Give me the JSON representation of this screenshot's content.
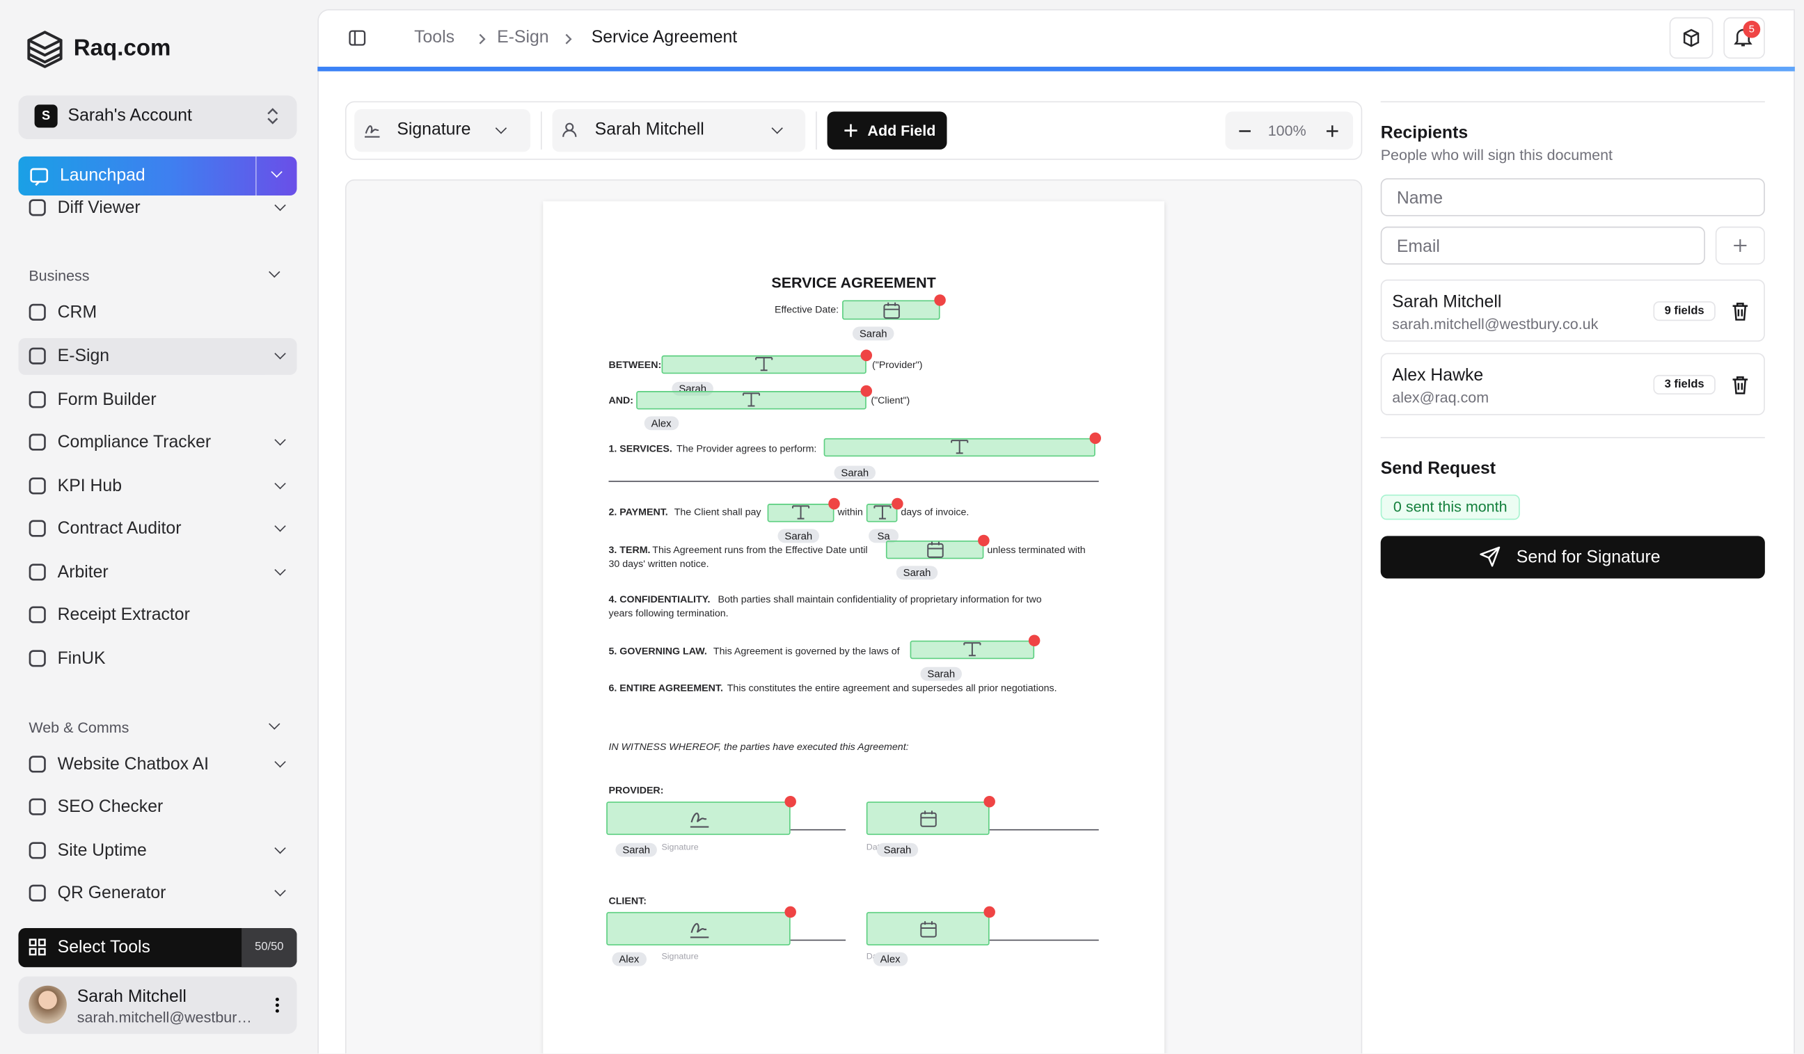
{
  "sidebar": {
    "brand": "Raq.com",
    "account": {
      "initial": "S",
      "name": "Sarah's Account"
    },
    "launchpad": "Launchpad",
    "items": [
      {
        "label": "Diff Viewer",
        "expandable": true
      },
      {
        "label": "Business",
        "group": true
      },
      {
        "label": "CRM"
      },
      {
        "label": "E-Sign",
        "expandable": true,
        "active": true
      },
      {
        "label": "Form Builder"
      },
      {
        "label": "Compliance Tracker",
        "expandable": true
      },
      {
        "label": "KPI Hub",
        "expandable": true
      },
      {
        "label": "Contract Auditor",
        "expandable": true
      },
      {
        "label": "Arbiter",
        "expandable": true
      },
      {
        "label": "Receipt Extractor"
      },
      {
        "label": "FinUK"
      },
      {
        "label": "Web & Comms",
        "group": true
      },
      {
        "label": "Website Chatbox AI",
        "expandable": true
      },
      {
        "label": "SEO Checker"
      },
      {
        "label": "Site Uptime",
        "expandable": true
      },
      {
        "label": "QR Generator",
        "expandable": true
      }
    ],
    "select_tools": {
      "label": "Select Tools",
      "count": "50/50"
    },
    "user": {
      "name": "Sarah Mitchell",
      "email": "sarah.mitchell@westbury.co.uk"
    }
  },
  "header": {
    "breadcrumb": [
      "Tools",
      "E-Sign",
      "Service Agreement"
    ],
    "notifications": "5"
  },
  "toolbar": {
    "field_type": "Signature",
    "recipient": "Sarah Mitchell",
    "add_field": "Add Field",
    "zoom": "100%"
  },
  "document": {
    "title": "SERVICE AGREEMENT",
    "fragments": [
      "Effective Date:",
      "BETWEEN:",
      "(\"Provider\")",
      "AND:",
      "(\"Client\")",
      "1. SERVICES.",
      "The Provider agrees to perform:",
      "2. PAYMENT.",
      "The Client shall pay",
      "within",
      "days of invoice.",
      "3. TERM.",
      "This Agreement runs from the Effective Date until",
      "unless terminated with",
      "30 days' written notice.",
      "4. CONFIDENTIALITY.",
      "Both parties shall maintain confidentiality of proprietary information for two",
      "years following termination.",
      "5. GOVERNING LAW.",
      "This Agreement is governed by the laws of",
      "6. ENTIRE AGREEMENT.",
      "This constitutes the entire agreement and supersedes all prior negotiations.",
      "IN WITNESS WHEREOF, the parties have executed this Agreement:",
      "PROVIDER:",
      "CLIENT:",
      "Signature",
      "Date",
      "Signature",
      "Date"
    ],
    "fields": [
      {
        "kind": "date",
        "tag": "Sarah"
      },
      {
        "kind": "text",
        "tag": "Sarah"
      },
      {
        "kind": "text",
        "tag": "Alex"
      },
      {
        "kind": "text",
        "tag": "Sarah"
      },
      {
        "kind": "text",
        "tag": "Sarah"
      },
      {
        "kind": "text",
        "tag": "Sa"
      },
      {
        "kind": "date",
        "tag": "Sarah"
      },
      {
        "kind": "text",
        "tag": "Sarah"
      },
      {
        "kind": "signature",
        "tag": "Sarah"
      },
      {
        "kind": "date",
        "tag": "Sarah"
      },
      {
        "kind": "signature",
        "tag": "Alex"
      },
      {
        "kind": "date",
        "tag": "Alex"
      }
    ]
  },
  "recipients": {
    "title": "Recipients",
    "subtitle": "People who will sign this document",
    "name_placeholder": "Name",
    "email_placeholder": "Email",
    "list": [
      {
        "name": "Sarah Mitchell",
        "email": "sarah.mitchell@westbury.co.uk",
        "fields": "9 fields"
      },
      {
        "name": "Alex Hawke",
        "email": "alex@raq.com",
        "fields": "3 fields"
      }
    ]
  },
  "send": {
    "title": "Send Request",
    "badge": "0 sent this month",
    "button": "Send for Signature"
  }
}
